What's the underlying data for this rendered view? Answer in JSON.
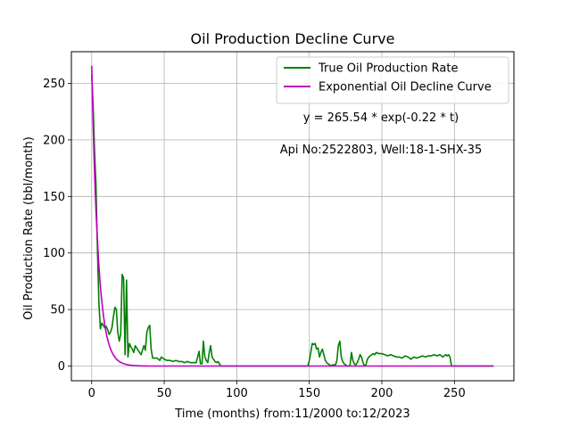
{
  "chart_data": {
    "type": "line",
    "title": "Oil Production Decline Curve",
    "xlabel": "Time (months) from:11/2000 to:12/2023",
    "ylabel": "Oil Production Rate (bbl/month)",
    "xlim": [
      -14,
      291
    ],
    "ylim": [
      -13,
      278
    ],
    "xticks": [
      0,
      50,
      100,
      150,
      200,
      250
    ],
    "yticks": [
      0,
      50,
      100,
      150,
      200,
      250
    ],
    "grid": true,
    "legend_position": "top-right",
    "annotations": [
      "y = 265.54 * exp(-0.22 * t)",
      "Api No:2522803, Well:18-1-SHX-35"
    ],
    "series": [
      {
        "name": "True Oil Production Rate",
        "color": "#008000",
        "x": [
          0,
          1,
          2,
          3,
          4,
          5,
          6,
          7,
          8,
          9,
          10,
          11,
          12,
          13,
          14,
          15,
          16,
          17,
          18,
          19,
          20,
          21,
          22,
          23,
          24,
          25,
          26,
          27,
          28,
          29,
          30,
          31,
          32,
          33,
          34,
          35,
          36,
          37,
          38,
          39,
          40,
          41,
          42,
          43,
          44,
          45,
          46,
          47,
          48,
          50,
          52,
          54,
          56,
          58,
          60,
          62,
          64,
          66,
          68,
          70,
          72,
          73,
          74,
          75,
          76,
          77,
          78,
          79,
          80,
          81,
          82,
          83,
          84,
          85,
          86,
          87,
          88,
          89,
          90,
          100,
          120,
          140,
          148,
          149,
          150,
          151,
          152,
          153,
          154,
          155,
          156,
          157,
          158,
          159,
          160,
          161,
          162,
          163,
          164,
          165,
          166,
          167,
          168,
          169,
          170,
          171,
          172,
          173,
          174,
          175,
          176,
          177,
          178,
          179,
          180,
          181,
          182,
          183,
          184,
          185,
          186,
          187,
          188,
          189,
          190,
          191,
          192,
          193,
          194,
          195,
          196,
          198,
          200,
          202,
          204,
          206,
          208,
          210,
          212,
          214,
          216,
          218,
          220,
          222,
          224,
          226,
          228,
          230,
          232,
          234,
          236,
          238,
          240,
          242,
          244,
          245,
          246,
          247,
          248,
          250,
          260,
          270,
          277
        ],
        "y": [
          258,
          230,
          190,
          160,
          100,
          55,
          33,
          38,
          36,
          34,
          35,
          32,
          28,
          30,
          34,
          44,
          52,
          50,
          30,
          22,
          28,
          81,
          78,
          10,
          76,
          8,
          20,
          17,
          15,
          12,
          18,
          16,
          14,
          12,
          10,
          14,
          18,
          14,
          30,
          34,
          36,
          15,
          7,
          7,
          7,
          7,
          6,
          5,
          8,
          6,
          5,
          5,
          4,
          5,
          4,
          4,
          3,
          4,
          3,
          3,
          3,
          8,
          13,
          2,
          2,
          22,
          8,
          5,
          3,
          12,
          18,
          8,
          6,
          4,
          3,
          4,
          2,
          0,
          0,
          0,
          0,
          0,
          0,
          0,
          5,
          12,
          20,
          19,
          20,
          15,
          16,
          8,
          12,
          15,
          10,
          5,
          3,
          2,
          1,
          0,
          1,
          1,
          1,
          5,
          18,
          22,
          8,
          4,
          2,
          1,
          0,
          0,
          0,
          12,
          5,
          2,
          1,
          3,
          6,
          10,
          8,
          3,
          0,
          1,
          6,
          8,
          9,
          10,
          11,
          10,
          12,
          11,
          11,
          10,
          9,
          10,
          9,
          8,
          8,
          7,
          9,
          8,
          6,
          8,
          7,
          8,
          9,
          8,
          9,
          9,
          10,
          9,
          10,
          8,
          10,
          9,
          10,
          8,
          0,
          0,
          0,
          0,
          0
        ]
      },
      {
        "name": "Exponential Oil Decline Curve",
        "color": "#bf00bf",
        "equation": {
          "a": 265.54,
          "b": 0.22,
          "x_start": 0,
          "x_end": 277
        }
      }
    ]
  }
}
